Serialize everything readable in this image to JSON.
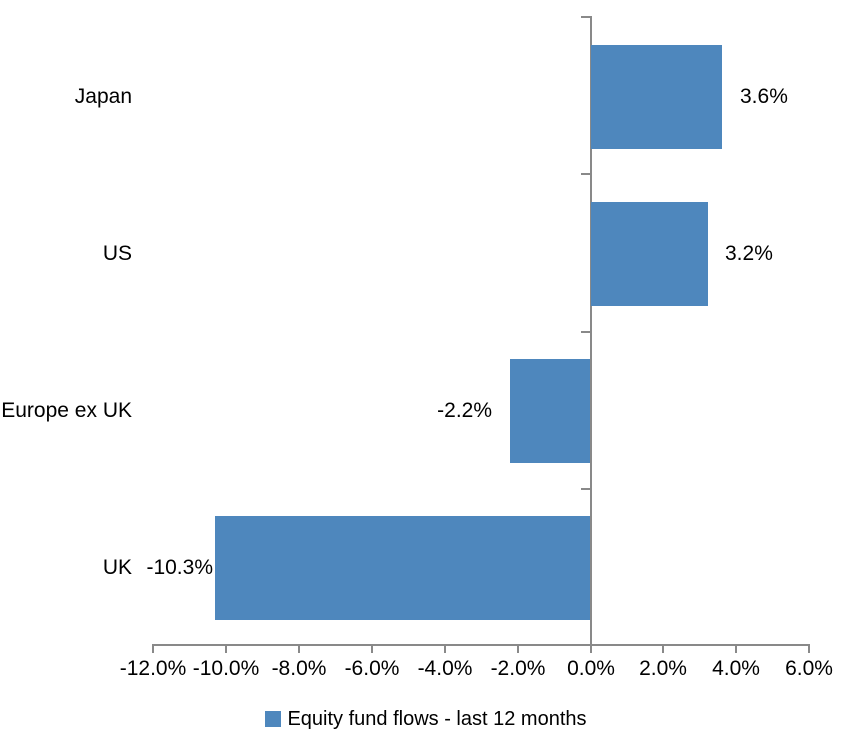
{
  "chart_data": {
    "type": "bar",
    "orientation": "horizontal",
    "categories": [
      "Japan",
      "US",
      "Europe ex UK",
      "UK"
    ],
    "values": [
      3.6,
      3.2,
      -2.2,
      -10.3
    ],
    "data_labels": [
      "3.6%",
      "3.2%",
      "-2.2%",
      "-10.3%"
    ],
    "series": [
      {
        "name": "Equity fund flows - last 12 months",
        "values": [
          3.6,
          3.2,
          -2.2,
          -10.3
        ]
      }
    ],
    "legend": {
      "label": "Equity fund flows - last 12 months",
      "position": "bottom"
    },
    "xlim": [
      -12,
      6
    ],
    "x_tick_values": [
      -12,
      -10,
      -8,
      -6,
      -4,
      -2,
      0,
      2,
      4,
      6
    ],
    "x_tick_labels": [
      "-12.0%",
      "-10.0%",
      "-8.0%",
      "-6.0%",
      "-4.0%",
      "-2.0%",
      "0.0%",
      "2.0%",
      "4.0%",
      "6.0%"
    ],
    "grid": false,
    "title": "",
    "xlabel": "",
    "ylabel": "",
    "colors": {
      "bar": "#4E87BD",
      "axis": "#898989",
      "text": "#000000",
      "background": "#FFFFFF"
    }
  }
}
